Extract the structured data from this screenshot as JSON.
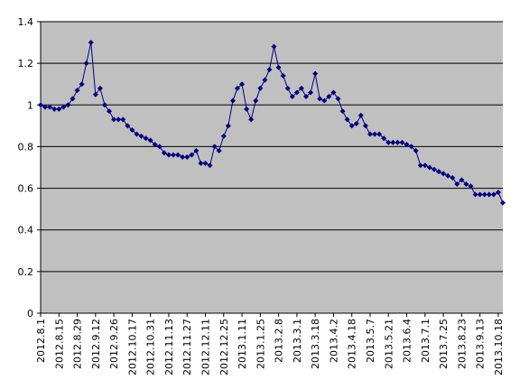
{
  "chart_data": {
    "type": "line",
    "categories": [
      "2012.8.1",
      null,
      null,
      null,
      "2012.8.15",
      null,
      null,
      null,
      "2012.8.29",
      null,
      null,
      null,
      "2012.9.12",
      null,
      null,
      null,
      "2012.9.26",
      null,
      null,
      null,
      "2012.10.17",
      null,
      null,
      null,
      "2012.10.31",
      null,
      null,
      null,
      "2012.11.13",
      null,
      null,
      null,
      "2012.11.27",
      null,
      null,
      null,
      "2012.12.11",
      null,
      null,
      null,
      "2012.12.25",
      null,
      null,
      null,
      "2013.1.11",
      null,
      null,
      null,
      "2013.1.25",
      null,
      null,
      null,
      "2013.2.8",
      null,
      null,
      null,
      "2013.3.1",
      null,
      null,
      null,
      "2013.3.18",
      null,
      null,
      null,
      "2013.4.2",
      null,
      null,
      null,
      "2013.4.18",
      null,
      null,
      null,
      "2013.5.7",
      null,
      null,
      null,
      "2013.5.21",
      null,
      null,
      null,
      "2013.6.4",
      null,
      null,
      null,
      "2013.7.1",
      null,
      null,
      null,
      "2013.7.25",
      null,
      null,
      null,
      "2013.8.23",
      null,
      null,
      null,
      "2013.9.13",
      null,
      null,
      null,
      "2013.10.18",
      null
    ],
    "series": [
      {
        "color": "#000080",
        "values": [
          1.0,
          0.99,
          0.99,
          0.98,
          0.98,
          0.99,
          1.0,
          1.03,
          1.07,
          1.1,
          1.2,
          1.3,
          1.05,
          1.08,
          1.0,
          0.97,
          0.93,
          0.93,
          0.93,
          0.9,
          0.88,
          0.86,
          0.85,
          0.84,
          0.83,
          0.81,
          0.8,
          0.77,
          0.76,
          0.76,
          0.76,
          0.75,
          0.75,
          0.76,
          0.78,
          0.72,
          0.72,
          0.71,
          0.8,
          0.78,
          0.85,
          0.9,
          1.02,
          1.08,
          1.1,
          0.98,
          0.93,
          1.02,
          1.08,
          1.12,
          1.17,
          1.28,
          1.18,
          1.14,
          1.08,
          1.04,
          1.06,
          1.08,
          1.04,
          1.06,
          1.15,
          1.03,
          1.02,
          1.04,
          1.06,
          1.03,
          0.97,
          0.93,
          0.9,
          0.91,
          0.95,
          0.9,
          0.86,
          0.86,
          0.86,
          0.84,
          0.82,
          0.82,
          0.82,
          0.82,
          0.81,
          0.8,
          0.78,
          0.71,
          0.71,
          0.7,
          0.69,
          0.68,
          0.67,
          0.66,
          0.65,
          0.62,
          0.64,
          0.62,
          0.61,
          0.57,
          0.57,
          0.57,
          0.57,
          0.57,
          0.58,
          0.53
        ]
      }
    ],
    "ylim": [
      0,
      1.4
    ],
    "yticks": [
      0,
      0.2,
      0.4,
      0.6,
      0.8,
      1,
      1.2,
      1.4
    ],
    "grid": true,
    "plot_background": "#c0c0c0"
  }
}
